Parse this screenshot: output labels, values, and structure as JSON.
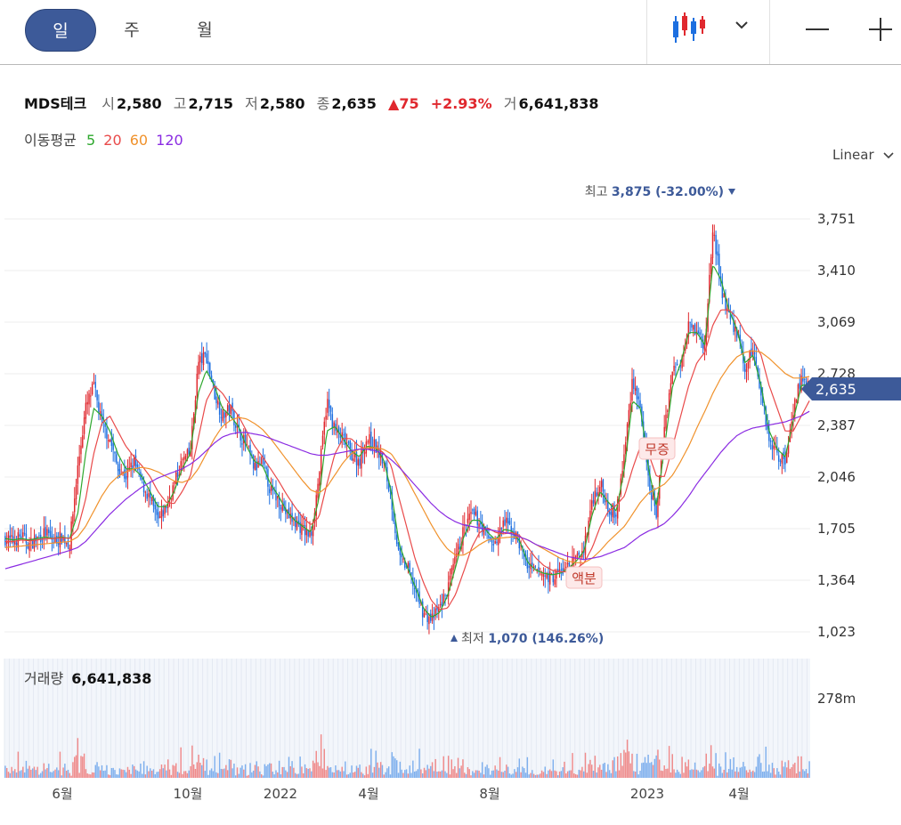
{
  "toolbar": {
    "tabs": [
      {
        "label": "일",
        "active": true
      },
      {
        "label": "주",
        "active": false
      },
      {
        "label": "월",
        "active": false
      }
    ],
    "chart_type_icon": "candlestick-icon",
    "dropdown_icon": "chevron-down-icon",
    "zoom_out_icon": "minus-icon",
    "zoom_in_icon": "plus-icon"
  },
  "header": {
    "name": "MDS테크",
    "open_label": "시",
    "open": "2,580",
    "high_label": "고",
    "high": "2,715",
    "low_label": "저",
    "low": "2,580",
    "close_label": "종",
    "close": "2,635",
    "change": "75",
    "change_pct": "+2.93%",
    "volume_label": "거",
    "volume": "6,641,838"
  },
  "ma_legend": {
    "label": "이동평균",
    "periods": [
      {
        "label": "5",
        "color": "#2ea82e"
      },
      {
        "label": "20",
        "color": "#e94a4a"
      },
      {
        "label": "60",
        "color": "#f0922c"
      },
      {
        "label": "120",
        "color": "#8a2be2"
      }
    ]
  },
  "scale_select": "Linear",
  "volume_panel": {
    "label": "거래량",
    "value": "6,641,838",
    "axis_label": "278m"
  },
  "colors": {
    "up": "#e0282e",
    "down": "#1d6fe0",
    "accent": "#3d5a99",
    "annotation": "#3d5a99"
  },
  "chart_data": {
    "type": "candlestick",
    "y_axis": {
      "min": 1023,
      "max": 3751,
      "ticks": [
        "3,751",
        "3,410",
        "3,069",
        "2,728",
        "2,387",
        "2,046",
        "1,705",
        "1,364",
        "1,023"
      ]
    },
    "x_axis_labels": [
      "6월",
      "10월",
      "2022",
      "4월",
      "8월",
      "2023",
      "4월"
    ],
    "last_price": {
      "value": 2635,
      "label": "2,635"
    },
    "annotations": {
      "high": {
        "label": "최고",
        "value": 3875,
        "text": "3,875 (-32.00%)"
      },
      "low": {
        "label": "최저",
        "value": 1070,
        "text": "1,070 (146.26%)"
      },
      "events": [
        "무증",
        "액분"
      ]
    },
    "price_path": [
      1640,
      1620,
      1660,
      1600,
      1640,
      1680,
      1620,
      1650,
      1600,
      2100,
      2500,
      2650,
      2400,
      2300,
      2100,
      2050,
      2150,
      2000,
      1900,
      1750,
      1850,
      2000,
      2150,
      2200,
      2800,
      2850,
      2600,
      2450,
      2500,
      2350,
      2250,
      2100,
      2150,
      1950,
      1900,
      1800,
      1750,
      1700,
      1650,
      2050,
      2550,
      2350,
      2300,
      2200,
      2150,
      2300,
      2250,
      2150,
      1900,
      1500,
      1450,
      1300,
      1150,
      1100,
      1180,
      1300,
      1500,
      1700,
      1800,
      1750,
      1650,
      1600,
      1750,
      1700,
      1600,
      1450,
      1420,
      1400,
      1380,
      1420,
      1450,
      1500,
      1580,
      1900,
      2000,
      1850,
      1800,
      2200,
      2700,
      2500,
      2000,
      1800,
      2400,
      2750,
      2800,
      3100,
      3000,
      2900,
      3700,
      3300,
      3100,
      3000,
      2750,
      2900,
      2600,
      2300,
      2200,
      2150,
      2500,
      2700,
      2635
    ],
    "ma_lines": [
      {
        "label": "5",
        "path": [
          1640,
          1630,
          1640,
          1630,
          1640,
          1650,
          1640,
          1650,
          1640,
          1800,
          2200,
          2500,
          2450,
          2350,
          2200,
          2100,
          2100,
          2050,
          1950,
          1850,
          1850,
          1950,
          2100,
          2200,
          2600,
          2750,
          2650,
          2500,
          2450,
          2380,
          2250,
          2150,
          2120,
          2000,
          1920,
          1820,
          1760,
          1720,
          1680,
          1900,
          2350,
          2380,
          2300,
          2220,
          2180,
          2250,
          2240,
          2170,
          1950,
          1600,
          1450,
          1320,
          1180,
          1120,
          1150,
          1260,
          1450,
          1650,
          1760,
          1760,
          1680,
          1630,
          1700,
          1690,
          1620,
          1480,
          1430,
          1410,
          1400,
          1410,
          1440,
          1490,
          1560,
          1800,
          1950,
          1880,
          1820,
          2100,
          2550,
          2500,
          2100,
          1850,
          2250,
          2650,
          2800,
          3000,
          3000,
          2920,
          3450,
          3350,
          3150,
          3020,
          2800,
          2850,
          2650,
          2350,
          2230,
          2180,
          2420,
          2650,
          2660
        ]
      },
      {
        "label": "20",
        "path": [
          1620,
          1620,
          1630,
          1625,
          1630,
          1640,
          1640,
          1645,
          1640,
          1700,
          1900,
          2200,
          2400,
          2450,
          2350,
          2250,
          2180,
          2120,
          2050,
          1950,
          1880,
          1870,
          1950,
          2050,
          2300,
          2550,
          2650,
          2600,
          2520,
          2450,
          2350,
          2250,
          2180,
          2100,
          2020,
          1930,
          1850,
          1780,
          1730,
          1780,
          2000,
          2200,
          2300,
          2300,
          2250,
          2230,
          2240,
          2210,
          2120,
          1900,
          1700,
          1500,
          1350,
          1230,
          1170,
          1180,
          1270,
          1420,
          1580,
          1680,
          1710,
          1680,
          1670,
          1680,
          1660,
          1580,
          1510,
          1460,
          1430,
          1420,
          1420,
          1440,
          1480,
          1580,
          1720,
          1820,
          1860,
          1920,
          2100,
          2250,
          2200,
          2050,
          2050,
          2250,
          2450,
          2650,
          2800,
          2870,
          3050,
          3150,
          3150,
          3100,
          3000,
          2950,
          2850,
          2650,
          2500,
          2350,
          2350,
          2450,
          2550
        ]
      },
      {
        "label": "60",
        "path": [
          1580,
          1585,
          1590,
          1595,
          1600,
          1605,
          1610,
          1615,
          1620,
          1650,
          1720,
          1820,
          1920,
          2000,
          2050,
          2080,
          2100,
          2110,
          2100,
          2080,
          2050,
          2020,
          2010,
          2030,
          2100,
          2200,
          2300,
          2380,
          2420,
          2440,
          2430,
          2400,
          2360,
          2300,
          2230,
          2160,
          2090,
          2020,
          1960,
          1940,
          1980,
          2060,
          2140,
          2200,
          2230,
          2240,
          2240,
          2230,
          2200,
          2120,
          2030,
          1930,
          1830,
          1730,
          1640,
          1570,
          1530,
          1530,
          1560,
          1600,
          1630,
          1640,
          1645,
          1650,
          1650,
          1630,
          1600,
          1570,
          1540,
          1510,
          1490,
          1480,
          1480,
          1510,
          1560,
          1620,
          1670,
          1720,
          1800,
          1880,
          1940,
          1970,
          2000,
          2060,
          2150,
          2250,
          2370,
          2480,
          2600,
          2700,
          2780,
          2840,
          2870,
          2880,
          2870,
          2830,
          2780,
          2730,
          2700,
          2700,
          2710
        ]
      },
      {
        "label": "120",
        "path": [
          1440,
          1455,
          1470,
          1485,
          1500,
          1515,
          1530,
          1545,
          1560,
          1580,
          1620,
          1680,
          1740,
          1800,
          1850,
          1900,
          1940,
          1980,
          2010,
          2040,
          2060,
          2080,
          2100,
          2130,
          2170,
          2220,
          2270,
          2310,
          2330,
          2340,
          2340,
          2330,
          2320,
          2300,
          2280,
          2260,
          2240,
          2220,
          2200,
          2190,
          2190,
          2200,
          2210,
          2220,
          2230,
          2230,
          2220,
          2200,
          2160,
          2110,
          2050,
          1990,
          1930,
          1870,
          1820,
          1780,
          1750,
          1730,
          1720,
          1710,
          1700,
          1690,
          1680,
          1670,
          1650,
          1630,
          1600,
          1580,
          1560,
          1540,
          1520,
          1510,
          1500,
          1510,
          1520,
          1540,
          1560,
          1580,
          1620,
          1660,
          1690,
          1710,
          1740,
          1790,
          1850,
          1920,
          2000,
          2070,
          2140,
          2210,
          2270,
          2320,
          2350,
          2370,
          2380,
          2390,
          2400,
          2410,
          2430,
          2450,
          2480
        ]
      }
    ]
  }
}
